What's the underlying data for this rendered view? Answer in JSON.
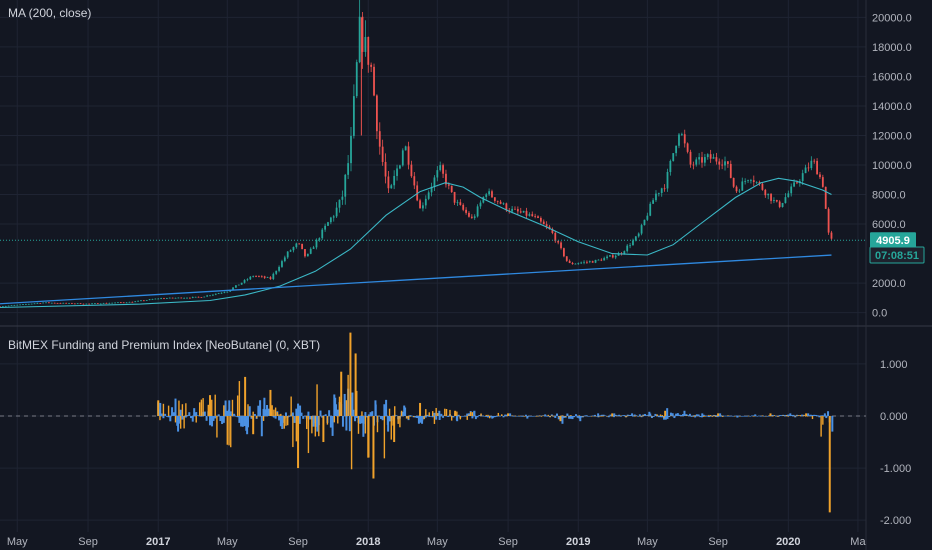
{
  "colors": {
    "background": "#131722",
    "grid": "#1f2433",
    "axis_text": "#b2b5be",
    "up_candle": "#26a69a",
    "down_candle": "#ef5350",
    "ma_line": "#3bb8c6",
    "trend_line": "#2f89e0",
    "price_line": "#26a69a",
    "funding_bar": "#4a90e2",
    "premium_bar": "#f0a22b",
    "separator": "#363a45"
  },
  "panes": {
    "price": {
      "legend": "MA (200, close)",
      "last_price_label": "4905.9",
      "countdown_label": "07:08:51"
    },
    "indicator": {
      "legend": "BitMEX Funding and Premium Index [NeoButane] (0, XBT)"
    }
  },
  "chart_data": [
    {
      "type": "candlestick",
      "pane": "price",
      "title": "MA (200, close)",
      "x_axis": {
        "tick_labels": [
          "May",
          "Sep",
          "2017",
          "May",
          "Sep",
          "2018",
          "May",
          "Sep",
          "2019",
          "May",
          "Sep",
          "2020",
          "Ma"
        ],
        "tick_dates": [
          "2016-05-01",
          "2016-09-01",
          "2017-01-01",
          "2017-05-01",
          "2017-09-01",
          "2018-01-01",
          "2018-05-01",
          "2018-09-01",
          "2019-01-01",
          "2019-05-01",
          "2019-09-01",
          "2020-01-01",
          "2020-05-01"
        ],
        "range": [
          "2016-04-01",
          "2020-05-15"
        ]
      },
      "y_axis": {
        "tick_labels": [
          "20000.0",
          "18000.0",
          "16000.0",
          "14000.0",
          "12000.0",
          "10000.0",
          "8000.0",
          "6000.0",
          "2000.0",
          "0.0"
        ],
        "tick_values": [
          20000,
          18000,
          16000,
          14000,
          12000,
          10000,
          8000,
          6000,
          2000,
          0
        ],
        "range": [
          -500,
          20500
        ]
      },
      "price_series": {
        "dates": [
          "2016-04-01",
          "2016-06-15",
          "2016-09-01",
          "2016-11-15",
          "2017-01-01",
          "2017-03-15",
          "2017-05-01",
          "2017-06-15",
          "2017-07-15",
          "2017-08-15",
          "2017-09-01",
          "2017-09-15",
          "2017-10-15",
          "2017-11-15",
          "2017-12-01",
          "2017-12-17",
          "2018-01-05",
          "2018-01-20",
          "2018-02-06",
          "2018-03-05",
          "2018-04-01",
          "2018-05-05",
          "2018-06-01",
          "2018-07-01",
          "2018-07-25",
          "2018-09-01",
          "2018-10-15",
          "2018-11-15",
          "2018-12-15",
          "2019-02-01",
          "2019-03-15",
          "2019-04-15",
          "2019-05-15",
          "2019-06-01",
          "2019-06-26",
          "2019-07-15",
          "2019-08-15",
          "2019-09-15",
          "2019-10-01",
          "2019-10-26",
          "2019-11-15",
          "2019-12-15",
          "2020-01-15",
          "2020-02-13",
          "2020-03-01",
          "2020-03-12",
          "2020-03-16"
        ],
        "close": [
          420,
          680,
          600,
          720,
          960,
          1050,
          1450,
          2500,
          2300,
          4100,
          4700,
          3700,
          5600,
          7500,
          11000,
          19100,
          16900,
          11500,
          7800,
          11500,
          7000,
          9800,
          7500,
          6300,
          8200,
          7000,
          6500,
          5500,
          3300,
          3500,
          4000,
          5200,
          8000,
          8700,
          12500,
          10000,
          10500,
          10200,
          8200,
          9300,
          8500,
          7200,
          8800,
          10300,
          8700,
          5000,
          4906
        ]
      },
      "ma_200": {
        "dates": [
          "2016-04-01",
          "2016-12-01",
          "2017-04-01",
          "2017-06-01",
          "2017-08-01",
          "2017-10-01",
          "2017-12-01",
          "2018-02-01",
          "2018-04-01",
          "2018-05-15",
          "2018-06-15",
          "2018-07-15",
          "2018-09-01",
          "2018-11-01",
          "2019-01-01",
          "2019-03-01",
          "2019-05-01",
          "2019-06-15",
          "2019-08-01",
          "2019-10-01",
          "2019-11-15",
          "2019-12-15",
          "2020-01-15",
          "2020-03-01",
          "2020-03-16"
        ],
        "values": [
          350,
          580,
          820,
          1200,
          1800,
          2800,
          4300,
          6600,
          8200,
          8800,
          8500,
          7800,
          6900,
          5900,
          4800,
          4000,
          3900,
          4600,
          6000,
          7800,
          8800,
          9100,
          8900,
          8300,
          8000
        ]
      },
      "trendline": {
        "start": {
          "date": "2016-04-01",
          "value": 600
        },
        "end": {
          "date": "2020-03-16",
          "value": 3900
        }
      },
      "last_price": 4905.9
    },
    {
      "type": "bar",
      "pane": "indicator",
      "title": "BitMEX Funding and Premium Index [NeoButane] (0, XBT)",
      "y_axis": {
        "tick_labels": [
          "1.000",
          "0.000",
          "-1.000",
          "-2.000"
        ],
        "tick_values": [
          1.0,
          0.0,
          -1.0,
          -2.0
        ],
        "range": [
          -2.15,
          1.65
        ]
      },
      "series": [
        {
          "name": "Funding",
          "dates": [
            "2017-01-01",
            "2017-02-01",
            "2017-03-01",
            "2017-04-01",
            "2017-05-01",
            "2017-06-01",
            "2017-07-01",
            "2017-08-01",
            "2017-09-01",
            "2017-10-01",
            "2017-11-01",
            "2017-12-01",
            "2017-12-20",
            "2018-01-10",
            "2018-02-01",
            "2018-03-01",
            "2018-04-01",
            "2018-05-01",
            "2018-06-01",
            "2018-07-01",
            "2018-08-01",
            "2018-09-01",
            "2018-10-01",
            "2018-11-01",
            "2018-12-01",
            "2019-01-01",
            "2019-02-01",
            "2019-03-01",
            "2019-04-01",
            "2019-05-01",
            "2019-06-01",
            "2019-07-01",
            "2019-08-01",
            "2019-09-01",
            "2019-10-01",
            "2019-11-01",
            "2019-12-01",
            "2020-01-01",
            "2020-02-01",
            "2020-03-01",
            "2020-03-14"
          ],
          "values": [
            0.25,
            -0.3,
            0.15,
            -0.2,
            0.3,
            -0.35,
            0.35,
            -0.25,
            0.2,
            -0.3,
            0.35,
            0.45,
            -0.4,
            0.3,
            -0.3,
            0.2,
            -0.15,
            0.1,
            -0.1,
            0.1,
            -0.05,
            0.05,
            -0.05,
            0.03,
            -0.15,
            -0.1,
            0.05,
            0.05,
            0.05,
            0.08,
            0.15,
            0.1,
            0.05,
            0.05,
            -0.03,
            0.03,
            0.02,
            0.05,
            0.05,
            0.05,
            -0.3
          ]
        },
        {
          "name": "Premium",
          "dates": [
            "2017-01-01",
            "2017-04-01",
            "2017-06-01",
            "2017-06-15",
            "2017-07-15",
            "2017-09-01",
            "2017-10-15",
            "2017-11-15",
            "2017-12-01",
            "2017-12-10",
            "2018-01-01",
            "2018-01-10",
            "2018-02-15",
            "2018-04-01",
            "2018-06-01",
            "2018-09-01",
            "2018-12-01",
            "2019-03-01",
            "2019-06-01",
            "2019-09-01",
            "2019-12-01",
            "2020-02-01",
            "2020-03-13"
          ],
          "values": [
            0.3,
            0.4,
            0.75,
            -0.35,
            0.5,
            -1.0,
            -0.5,
            0.85,
            1.6,
            1.2,
            -0.8,
            -1.2,
            -0.5,
            0.25,
            0.1,
            0.05,
            -0.1,
            0.05,
            0.1,
            0.05,
            0.05,
            0.05,
            -1.85
          ]
        }
      ]
    }
  ]
}
